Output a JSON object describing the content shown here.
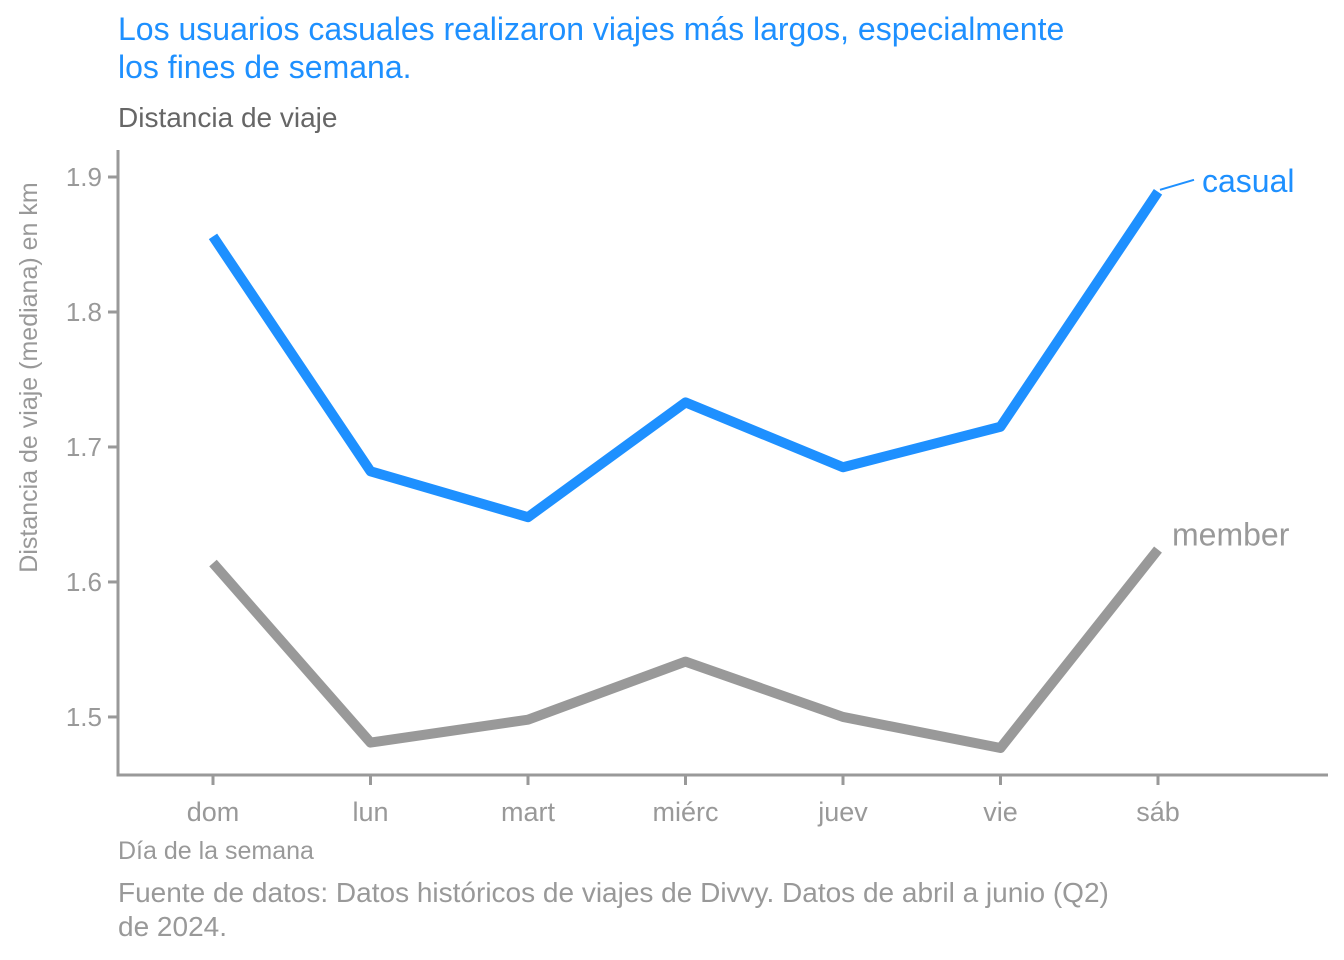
{
  "title": "Los usuarios casuales realizaron viajes más largos, especialmente\n los fines de semana.",
  "subtitle": "Distancia de viaje",
  "caption": "Fuente de datos: Datos históricos de viajes de Divvy. Datos de abril a junio (Q2)\n de 2024.",
  "colors": {
    "casual": "#1e90ff",
    "member": "#999999",
    "axis": "#999999",
    "title": "#1e90ff"
  },
  "chart_data": {
    "type": "line",
    "xlabel": "Día de la semana",
    "ylabel": "Distancia de viaje (mediana) en km",
    "categories": [
      "dom",
      "lun",
      "mart",
      "miérc",
      "juev",
      "vie",
      "sáb"
    ],
    "yticks": [
      1.5,
      1.6,
      1.7,
      1.8,
      1.9
    ],
    "ylim": [
      1.457,
      1.92
    ],
    "grid": false,
    "legend": "direct labels at line ends",
    "series": [
      {
        "name": "casual",
        "values": [
          1.856,
          1.682,
          1.648,
          1.733,
          1.685,
          1.715,
          1.889
        ]
      },
      {
        "name": "member",
        "values": [
          1.614,
          1.481,
          1.498,
          1.541,
          1.5,
          1.477,
          1.624
        ]
      }
    ]
  }
}
